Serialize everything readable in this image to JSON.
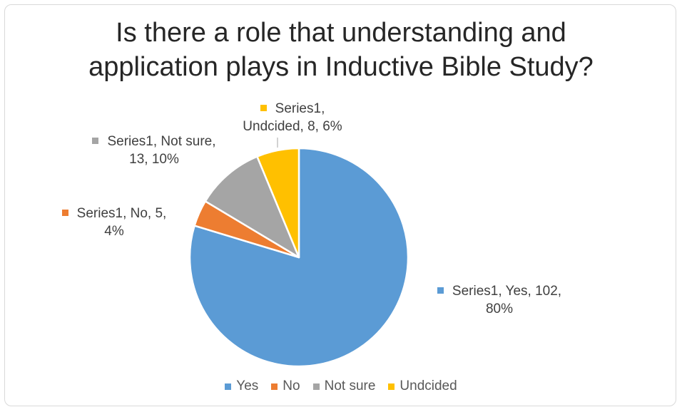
{
  "chart_data": {
    "type": "pie",
    "title_lines": [
      "Is there a role that understanding and",
      "application plays in Inductive Bible Study?"
    ],
    "series_name": "Series1",
    "categories": [
      "Yes",
      "No",
      "Not sure",
      "Undcided"
    ],
    "values": [
      102,
      5,
      13,
      8
    ],
    "percents": [
      "80%",
      "4%",
      "10%",
      "6%"
    ],
    "colors": [
      "#5b9bd5",
      "#ed7d31",
      "#a5a5a5",
      "#ffc000"
    ],
    "data_labels": [
      [
        "Series1, Yes, 102,",
        "80%"
      ],
      [
        "Series1, No, 5,",
        "4%"
      ],
      [
        "Series1, Not sure,",
        "13, 10%"
      ],
      [
        "Series1,",
        "Undcided, 8, 6%"
      ]
    ],
    "legend": [
      "Yes",
      "No",
      "Not sure",
      "Undcided"
    ],
    "legend_position": "bottom"
  }
}
